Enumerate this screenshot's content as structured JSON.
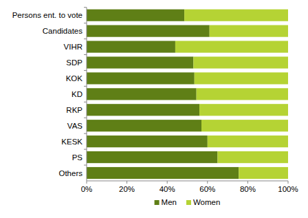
{
  "chart_data": {
    "type": "bar",
    "orientation": "horizontal",
    "stacked": true,
    "legend": "bottom",
    "grid": false,
    "categories": [
      "Persons ent. to vote",
      "Candidates",
      "VIHR",
      "SDP",
      "KOK",
      "KD",
      "RKP",
      "VAS",
      "KESK",
      "PS",
      "Others"
    ],
    "series": [
      {
        "name": "Men",
        "color": "#5f7f16",
        "values": [
          48.5,
          61,
          44,
          53,
          53.5,
          54.5,
          56,
          57,
          60,
          65,
          75.5
        ]
      },
      {
        "name": "Women",
        "color": "#b5d334",
        "values": [
          51.5,
          39,
          56,
          47,
          46.5,
          45.5,
          44,
          43,
          40,
          35,
          24.5
        ]
      }
    ],
    "xlim": [
      0,
      100
    ],
    "xticks": [
      {
        "value": 0,
        "label": "0%"
      },
      {
        "value": 20,
        "label": "20%"
      },
      {
        "value": 40,
        "label": "40%"
      },
      {
        "value": 60,
        "label": "60%"
      },
      {
        "value": 80,
        "label": "80%"
      },
      {
        "value": 100,
        "label": "100%"
      }
    ]
  }
}
